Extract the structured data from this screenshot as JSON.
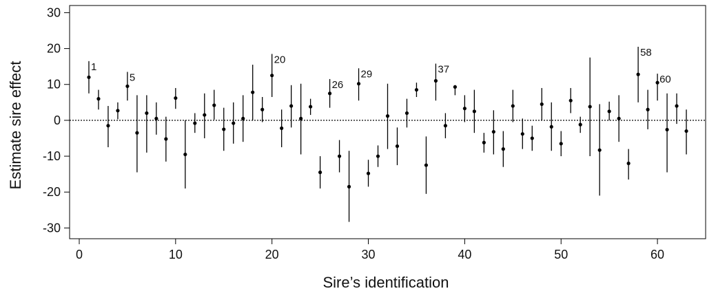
{
  "chart_data": {
    "type": "scatter",
    "title": "",
    "xlabel": "Sire’s identification",
    "ylabel": "Estimate sire effect",
    "xlim": [
      -1,
      65
    ],
    "ylim": [
      -33,
      32
    ],
    "xticks": [
      0,
      10,
      20,
      30,
      40,
      50,
      60
    ],
    "yticks": [
      -30,
      -20,
      -10,
      0,
      10,
      20,
      30
    ],
    "tick_labels_x": [
      "0",
      "10",
      "20",
      "30",
      "40",
      "50",
      "60"
    ],
    "tick_labels_y": [
      "-30",
      "-20",
      "-10",
      "0",
      "10",
      "20",
      "30"
    ],
    "reference_line": 0,
    "grid": false,
    "points": [
      {
        "x": 1,
        "y": 12,
        "lo": 7.5,
        "hi": 16.5,
        "label": "1"
      },
      {
        "x": 2,
        "y": 6,
        "lo": 3,
        "hi": 8.5
      },
      {
        "x": 3,
        "y": -1.5,
        "lo": -7.5,
        "hi": 4
      },
      {
        "x": 4,
        "y": 2.7,
        "lo": 0.3,
        "hi": 5
      },
      {
        "x": 5,
        "y": 9.5,
        "lo": 5.5,
        "hi": 13.5,
        "label": "5"
      },
      {
        "x": 6,
        "y": -3.5,
        "lo": -14.5,
        "hi": 7
      },
      {
        "x": 7,
        "y": 2,
        "lo": -9,
        "hi": 7
      },
      {
        "x": 8,
        "y": 0.5,
        "lo": -4,
        "hi": 5
      },
      {
        "x": 9,
        "y": -5.2,
        "lo": -11.5,
        "hi": 1
      },
      {
        "x": 10,
        "y": 6.2,
        "lo": 3.2,
        "hi": 9
      },
      {
        "x": 11,
        "y": -9.5,
        "lo": -19,
        "hi": 0
      },
      {
        "x": 12,
        "y": -0.8,
        "lo": -3.5,
        "hi": 2
      },
      {
        "x": 13,
        "y": 1.5,
        "lo": -5,
        "hi": 7.5
      },
      {
        "x": 14,
        "y": 4.2,
        "lo": 0.2,
        "hi": 8.5
      },
      {
        "x": 15,
        "y": -2.5,
        "lo": -8.5,
        "hi": 3.5
      },
      {
        "x": 16,
        "y": -0.8,
        "lo": -6.5,
        "hi": 5
      },
      {
        "x": 17,
        "y": 0.5,
        "lo": -6,
        "hi": 7
      },
      {
        "x": 18,
        "y": 7.8,
        "lo": 0,
        "hi": 15.5
      },
      {
        "x": 19,
        "y": 3,
        "lo": -0.5,
        "hi": 6.5
      },
      {
        "x": 20,
        "y": 12.5,
        "lo": 6.5,
        "hi": 18.5,
        "label": "20"
      },
      {
        "x": 21,
        "y": -2.2,
        "lo": -7.5,
        "hi": 3
      },
      {
        "x": 22,
        "y": 4,
        "lo": -2,
        "hi": 9.8
      },
      {
        "x": 23,
        "y": 0.5,
        "lo": -9.5,
        "hi": 10.2
      },
      {
        "x": 24,
        "y": 3.8,
        "lo": 1.5,
        "hi": 6
      },
      {
        "x": 25,
        "y": -14.5,
        "lo": -19,
        "hi": -10
      },
      {
        "x": 26,
        "y": 7.5,
        "lo": 3.5,
        "hi": 11.5,
        "label": "26"
      },
      {
        "x": 27,
        "y": -10,
        "lo": -14.5,
        "hi": -5.5
      },
      {
        "x": 28,
        "y": -18.5,
        "lo": -28.3,
        "hi": -8.5
      },
      {
        "x": 29,
        "y": 10.2,
        "lo": 5.5,
        "hi": 14.5,
        "label": "29"
      },
      {
        "x": 30,
        "y": -14.8,
        "lo": -18.5,
        "hi": -11
      },
      {
        "x": 31,
        "y": -10,
        "lo": -13,
        "hi": -7
      },
      {
        "x": 32,
        "y": 1.2,
        "lo": -8,
        "hi": 10.2
      },
      {
        "x": 33,
        "y": -7.2,
        "lo": -12.5,
        "hi": -2
      },
      {
        "x": 34,
        "y": 2,
        "lo": -2,
        "hi": 6
      },
      {
        "x": 35,
        "y": 8.5,
        "lo": 6.5,
        "hi": 10.5
      },
      {
        "x": 36,
        "y": -12.5,
        "lo": -20.5,
        "hi": -4.5
      },
      {
        "x": 37,
        "y": 11,
        "lo": 5.5,
        "hi": 15.8,
        "label": "37"
      },
      {
        "x": 38,
        "y": -1.5,
        "lo": -5,
        "hi": 2
      },
      {
        "x": 39,
        "y": 9.3,
        "lo": 7,
        "hi": 9.8
      },
      {
        "x": 40,
        "y": 3.3,
        "lo": -0.5,
        "hi": 7
      },
      {
        "x": 41,
        "y": 2.5,
        "lo": -3.5,
        "hi": 8.5
      },
      {
        "x": 42,
        "y": -6.2,
        "lo": -9,
        "hi": -3.5
      },
      {
        "x": 43,
        "y": -3.2,
        "lo": -9.5,
        "hi": 2.8
      },
      {
        "x": 44,
        "y": -8,
        "lo": -13,
        "hi": -3
      },
      {
        "x": 45,
        "y": 4,
        "lo": -0.5,
        "hi": 8.5
      },
      {
        "x": 46,
        "y": -3.8,
        "lo": -8,
        "hi": 0.5
      },
      {
        "x": 47,
        "y": -5,
        "lo": -8.5,
        "hi": -1.5
      },
      {
        "x": 48,
        "y": 4.5,
        "lo": 0,
        "hi": 9
      },
      {
        "x": 49,
        "y": -1.8,
        "lo": -8.5,
        "hi": 5
      },
      {
        "x": 50,
        "y": -6.5,
        "lo": -10,
        "hi": -3
      },
      {
        "x": 51,
        "y": 5.5,
        "lo": 2,
        "hi": 9
      },
      {
        "x": 52,
        "y": -1.2,
        "lo": -3.5,
        "hi": 1
      },
      {
        "x": 53,
        "y": 3.8,
        "lo": -10,
        "hi": 17.5
      },
      {
        "x": 54,
        "y": -8.3,
        "lo": -21,
        "hi": 4.5
      },
      {
        "x": 55,
        "y": 2.5,
        "lo": 0,
        "hi": 5.2
      },
      {
        "x": 56,
        "y": 0.5,
        "lo": -6,
        "hi": 7
      },
      {
        "x": 57,
        "y": -12,
        "lo": -16.5,
        "hi": -8
      },
      {
        "x": 58,
        "y": 12.8,
        "lo": 5,
        "hi": 20.5,
        "label": "58"
      },
      {
        "x": 59,
        "y": 3,
        "lo": -2.5,
        "hi": 8.5
      },
      {
        "x": 60,
        "y": 10.5,
        "lo": 5.5,
        "hi": 13,
        "label": "60"
      },
      {
        "x": 61,
        "y": -2.6,
        "lo": -14.5,
        "hi": 7.5
      },
      {
        "x": 62,
        "y": 4,
        "lo": -1,
        "hi": 7.5
      },
      {
        "x": 63,
        "y": -3,
        "lo": -9.5,
        "hi": 3
      }
    ]
  }
}
